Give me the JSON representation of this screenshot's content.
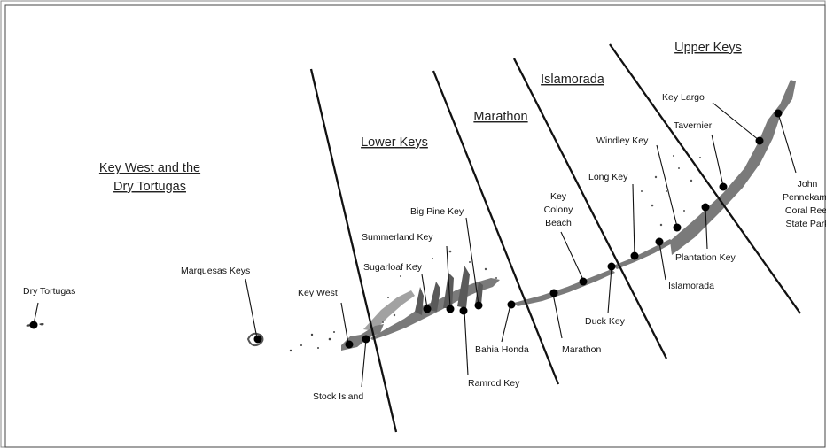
{
  "map": {
    "regions": {
      "key_west_line1": "Key West and the",
      "key_west_line2": "Dry Tortugas",
      "lower_keys": "Lower Keys",
      "marathon": "Marathon",
      "islamorada": "Islamorada",
      "upper_keys": "Upper Keys"
    },
    "places": {
      "dry_tortugas": "Dry Tortugas",
      "marquesas_keys": "Marquesas Keys",
      "key_west": "Key West",
      "stock_island": "Stock Island",
      "sugarloaf_key": "Sugarloaf Key",
      "summerland_key": "Summerland Key",
      "big_pine_key": "Big Pine Key",
      "bahia_honda": "Bahia Honda",
      "ramrod_key": "Ramrod Key",
      "marathon": "Marathon",
      "key_colony_beach_line1": "Key",
      "key_colony_beach_line2": "Colony",
      "key_colony_beach_line3": "Beach",
      "duck_key": "Duck Key",
      "long_key": "Long Key",
      "windley_key": "Windley Key",
      "islamorada": "Islamorada",
      "plantation_key": "Plantation Key",
      "tavernier": "Tavernier",
      "key_largo": "Key Largo",
      "pennekamp_line1": "John",
      "pennekamp_line2": "Pennekamp",
      "pennekamp_line3": "Coral Reef",
      "pennekamp_line4": "State Park"
    }
  }
}
